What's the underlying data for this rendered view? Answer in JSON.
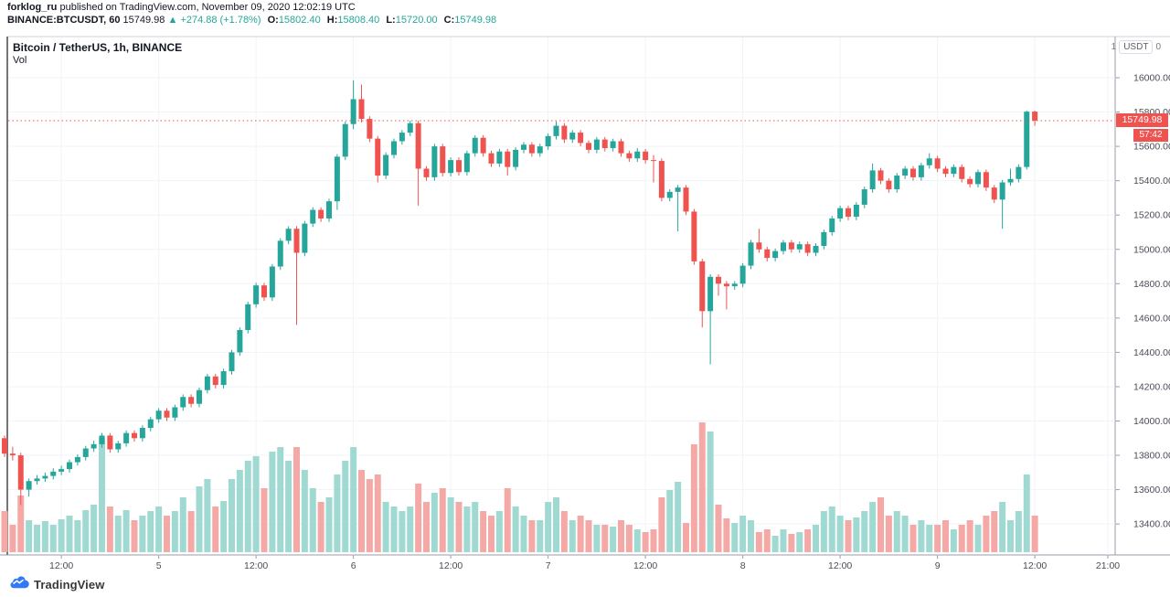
{
  "header": {
    "author": "forklog_ru",
    "published": " published on TradingView.com, November 09, 2020 12:02:19 UTC",
    "symbol": "BINANCE:BTCUSDT, 60",
    "last": "15749.98",
    "arrow": "▲",
    "change": "+274.88 (+1.78%)",
    "o_label": "O:",
    "o_val": "15802.40",
    "h_label": "H:",
    "h_val": "15808.40",
    "l_label": "L:",
    "l_val": "15720.00",
    "c_label": "C:",
    "c_val": "15749.98"
  },
  "chart": {
    "title": "Bitcoin / TetherUS, 1h, BINANCE",
    "indicator_label": "Vol",
    "axis_toggle": {
      "left": "1",
      "unit": "USDT",
      "right": "0"
    },
    "price_badge": "15749.98",
    "countdown": "57:42",
    "colors": {
      "up": "#26a69a",
      "down": "#ef5350",
      "vol_up": "#9fd9d2",
      "vol_down": "#f5a9a7",
      "grid": "#f0f3fa",
      "axis_text": "#4a4d57",
      "border": "#757575",
      "last_price_line": "#ef5350"
    }
  },
  "footer": {
    "brand": "TradingView"
  },
  "chart_data": {
    "type": "candlestick",
    "symbol": "BINANCE:BTCUSDT",
    "interval": "1h",
    "title": "Bitcoin / TetherUS, 1h, BINANCE",
    "start": "2020-11-04 05:00 UTC",
    "end": "2020-11-09 12:00 UTC",
    "last_price": 15749.98,
    "price_axis_ticks": [
      16000,
      15800,
      15600,
      15400,
      15200,
      15000,
      14800,
      14600,
      14400,
      14200,
      14000,
      13800,
      13600,
      13400
    ],
    "time_axis_labels": [
      "12:00",
      "5",
      "12:00",
      "6",
      "12:00",
      "7",
      "12:00",
      "8",
      "12:00",
      "9",
      "12:00",
      "21:00"
    ],
    "ylim": [
      13300,
      16240
    ],
    "note": "each candle is [open, high, low, close, relative_volume]; hourly from 2020-11-04 05:00 to 2020-11-09 12:00 UTC, values estimated from chart",
    "candles": [
      [
        13900,
        13915,
        13790,
        13810,
        45
      ],
      [
        13810,
        13850,
        13770,
        13800,
        30
      ],
      [
        13800,
        13815,
        13510,
        13600,
        62
      ],
      [
        13600,
        13665,
        13560,
        13650,
        35
      ],
      [
        13650,
        13685,
        13630,
        13665,
        30
      ],
      [
        13665,
        13700,
        13645,
        13680,
        34
      ],
      [
        13680,
        13725,
        13660,
        13705,
        30
      ],
      [
        13705,
        13740,
        13685,
        13720,
        36
      ],
      [
        13720,
        13775,
        13700,
        13760,
        40
      ],
      [
        13760,
        13805,
        13740,
        13790,
        35
      ],
      [
        13790,
        13855,
        13770,
        13840,
        46
      ],
      [
        13840,
        13885,
        13820,
        13865,
        52
      ],
      [
        13865,
        13930,
        13845,
        13915,
        125
      ],
      [
        13915,
        13930,
        13815,
        13835,
        50
      ],
      [
        13835,
        13885,
        13815,
        13870,
        40
      ],
      [
        13870,
        13945,
        13850,
        13930,
        46
      ],
      [
        13930,
        13945,
        13880,
        13900,
        35
      ],
      [
        13900,
        13975,
        13880,
        13960,
        40
      ],
      [
        13960,
        14025,
        13940,
        14010,
        45
      ],
      [
        14010,
        14075,
        13990,
        14060,
        50
      ],
      [
        14060,
        14075,
        14000,
        14020,
        40
      ],
      [
        14020,
        14095,
        14000,
        14080,
        45
      ],
      [
        14080,
        14155,
        14060,
        14140,
        60
      ],
      [
        14140,
        14155,
        14080,
        14100,
        45
      ],
      [
        14100,
        14195,
        14080,
        14180,
        72
      ],
      [
        14180,
        14275,
        14160,
        14260,
        80
      ],
      [
        14260,
        14275,
        14190,
        14210,
        50
      ],
      [
        14210,
        14305,
        14190,
        14290,
        56
      ],
      [
        14290,
        14415,
        14270,
        14400,
        80
      ],
      [
        14400,
        14545,
        14380,
        14530,
        90
      ],
      [
        14530,
        14695,
        14510,
        14680,
        100
      ],
      [
        14680,
        14805,
        14660,
        14790,
        105
      ],
      [
        14790,
        14805,
        14700,
        14720,
        70
      ],
      [
        14720,
        14915,
        14700,
        14900,
        110
      ],
      [
        14900,
        15065,
        14880,
        15050,
        115
      ],
      [
        15050,
        15135,
        15030,
        15120,
        100
      ],
      [
        15120,
        15135,
        14560,
        14980,
        115
      ],
      [
        14980,
        15165,
        14960,
        15150,
        90
      ],
      [
        15150,
        15245,
        15130,
        15230,
        70
      ],
      [
        15230,
        15245,
        15160,
        15180,
        55
      ],
      [
        15180,
        15295,
        15160,
        15280,
        60
      ],
      [
        15280,
        15555,
        15230,
        15540,
        85
      ],
      [
        15540,
        15745,
        15520,
        15730,
        100
      ],
      [
        15730,
        15985,
        15700,
        15875,
        115
      ],
      [
        15875,
        15960,
        15740,
        15760,
        90
      ],
      [
        15760,
        15775,
        15625,
        15645,
        80
      ],
      [
        15645,
        15660,
        15390,
        15430,
        85
      ],
      [
        15430,
        15565,
        15410,
        15550,
        55
      ],
      [
        15550,
        15645,
        15530,
        15630,
        50
      ],
      [
        15630,
        15695,
        15610,
        15680,
        45
      ],
      [
        15680,
        15750,
        15660,
        15735,
        50
      ],
      [
        15735,
        15750,
        15255,
        15470,
        75
      ],
      [
        15470,
        15485,
        15400,
        15420,
        55
      ],
      [
        15420,
        15615,
        15400,
        15600,
        65
      ],
      [
        15600,
        15615,
        15425,
        15445,
        70
      ],
      [
        15445,
        15535,
        15425,
        15520,
        60
      ],
      [
        15520,
        15535,
        15430,
        15450,
        55
      ],
      [
        15450,
        15575,
        15430,
        15560,
        50
      ],
      [
        15560,
        15665,
        15540,
        15650,
        55
      ],
      [
        15650,
        15665,
        15540,
        15560,
        45
      ],
      [
        15560,
        15575,
        15480,
        15500,
        40
      ],
      [
        15500,
        15585,
        15480,
        15570,
        45
      ],
      [
        15570,
        15585,
        15430,
        15480,
        70
      ],
      [
        15480,
        15595,
        15460,
        15580,
        50
      ],
      [
        15580,
        15625,
        15560,
        15610,
        40
      ],
      [
        15610,
        15625,
        15540,
        15560,
        35
      ],
      [
        15560,
        15615,
        15540,
        15600,
        35
      ],
      [
        15600,
        15675,
        15580,
        15660,
        55
      ],
      [
        15660,
        15745,
        15640,
        15720,
        60
      ],
      [
        15720,
        15735,
        15620,
        15640,
        45
      ],
      [
        15640,
        15695,
        15620,
        15680,
        35
      ],
      [
        15680,
        15695,
        15600,
        15620,
        40
      ],
      [
        15620,
        15635,
        15560,
        15580,
        35
      ],
      [
        15580,
        15655,
        15560,
        15640,
        30
      ],
      [
        15640,
        15655,
        15570,
        15590,
        30
      ],
      [
        15590,
        15645,
        15570,
        15630,
        28
      ],
      [
        15630,
        15645,
        15540,
        15560,
        35
      ],
      [
        15560,
        15575,
        15510,
        15530,
        30
      ],
      [
        15530,
        15590,
        15510,
        15570,
        25
      ],
      [
        15570,
        15585,
        15500,
        15520,
        22
      ],
      [
        15520,
        15550,
        15390,
        15515,
        25
      ],
      [
        15515,
        15530,
        15280,
        15300,
        60
      ],
      [
        15300,
        15350,
        15280,
        15335,
        68
      ],
      [
        15335,
        15375,
        15105,
        15360,
        77
      ],
      [
        15360,
        15375,
        15200,
        15220,
        32
      ],
      [
        15220,
        15235,
        14910,
        14930,
        118
      ],
      [
        14930,
        14945,
        14545,
        14640,
        142
      ],
      [
        14640,
        14855,
        14330,
        14840,
        132
      ],
      [
        14840,
        14855,
        14730,
        14800,
        52
      ],
      [
        14800,
        14815,
        14650,
        14785,
        37
      ],
      [
        14785,
        14815,
        14765,
        14800,
        32
      ],
      [
        14800,
        14920,
        14780,
        14905,
        40
      ],
      [
        14905,
        15055,
        14885,
        15040,
        35
      ],
      [
        15040,
        15120,
        14980,
        15000,
        22
      ],
      [
        15000,
        15015,
        14930,
        14950,
        25
      ],
      [
        14950,
        15005,
        14930,
        14990,
        18
      ],
      [
        14990,
        15055,
        14970,
        15040,
        25
      ],
      [
        15040,
        15055,
        14980,
        15000,
        20
      ],
      [
        15000,
        15045,
        14980,
        15030,
        22
      ],
      [
        15030,
        15045,
        14960,
        14980,
        25
      ],
      [
        14980,
        15035,
        14960,
        15020,
        30
      ],
      [
        15020,
        15115,
        15000,
        15100,
        45
      ],
      [
        15100,
        15195,
        15080,
        15180,
        50
      ],
      [
        15180,
        15255,
        15160,
        15240,
        40
      ],
      [
        15240,
        15255,
        15170,
        15190,
        35
      ],
      [
        15190,
        15275,
        15170,
        15260,
        38
      ],
      [
        15260,
        15365,
        15240,
        15350,
        45
      ],
      [
        15350,
        15500,
        15330,
        15460,
        55
      ],
      [
        15460,
        15475,
        15380,
        15400,
        60
      ],
      [
        15400,
        15415,
        15330,
        15350,
        40
      ],
      [
        15350,
        15445,
        15330,
        15430,
        45
      ],
      [
        15430,
        15485,
        15410,
        15470,
        40
      ],
      [
        15470,
        15485,
        15400,
        15420,
        30
      ],
      [
        15420,
        15505,
        15400,
        15490,
        35
      ],
      [
        15490,
        15560,
        15470,
        15530,
        30
      ],
      [
        15530,
        15545,
        15450,
        15470,
        30
      ],
      [
        15470,
        15485,
        15420,
        15440,
        35
      ],
      [
        15440,
        15495,
        15420,
        15480,
        25
      ],
      [
        15480,
        15495,
        15390,
        15410,
        30
      ],
      [
        15410,
        15425,
        15360,
        15380,
        35
      ],
      [
        15380,
        15465,
        15360,
        15450,
        30
      ],
      [
        15450,
        15465,
        15340,
        15360,
        40
      ],
      [
        15360,
        15375,
        15270,
        15290,
        45
      ],
      [
        15290,
        15405,
        15120,
        15390,
        55
      ],
      [
        15390,
        15470,
        15370,
        15410,
        35
      ],
      [
        15410,
        15495,
        15390,
        15480,
        45
      ],
      [
        15480,
        15808,
        15465,
        15802,
        85
      ],
      [
        15802.4,
        15808.4,
        15720,
        15749.98,
        40
      ]
    ]
  }
}
